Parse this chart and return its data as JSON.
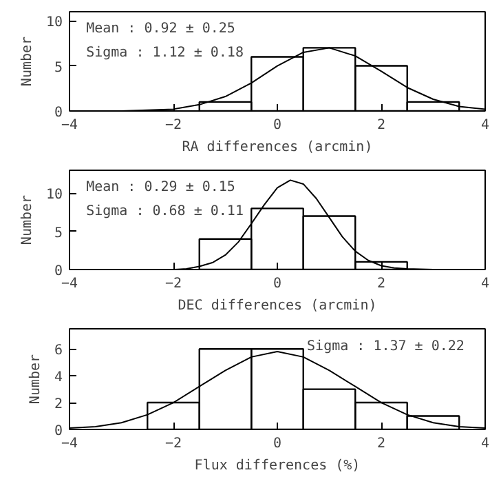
{
  "chart_data": [
    {
      "type": "histogram",
      "xlabel": "RA differences (arcmin)",
      "ylabel": "Number",
      "xlim": [
        -4,
        4
      ],
      "ylim": [
        0,
        11
      ],
      "xticks": [
        -4,
        -2,
        0,
        2,
        4
      ],
      "yticks": [
        0,
        5,
        10
      ],
      "grid": false,
      "annotations": [
        "Mean  :  0.92 ± 0.25",
        "Sigma :  1.12 ± 0.18"
      ],
      "series": [
        {
          "color": "#000000",
          "bins": [
            -1.5,
            -0.5,
            0.5,
            1.5,
            2.5,
            3.5
          ],
          "values": [
            1,
            6,
            7,
            5,
            1
          ]
        },
        {
          "type": "line",
          "color": "#000000",
          "x": [
            -4,
            -3.5,
            -3,
            -2.5,
            -2,
            -1.5,
            -1,
            -0.5,
            0,
            0.5,
            1,
            1.5,
            2,
            2.5,
            3,
            3.5,
            4
          ],
          "values": [
            0.0,
            0.0,
            0.0,
            0.1,
            0.2,
            0.7,
            1.6,
            3.1,
            5.0,
            6.5,
            7.0,
            6.1,
            4.4,
            2.6,
            1.3,
            0.5,
            0.2
          ]
        }
      ]
    },
    {
      "type": "histogram",
      "xlabel": "DEC differences (arcmin)",
      "ylabel": "Number",
      "xlim": [
        -4,
        4
      ],
      "ylim": [
        0,
        13
      ],
      "xticks": [
        -4,
        -2,
        0,
        2,
        4
      ],
      "yticks": [
        0,
        5,
        10
      ],
      "grid": false,
      "annotations": [
        "Mean  :  0.29 ± 0.15",
        "Sigma :  0.68 ± 0.11"
      ],
      "series": [
        {
          "color": "#000000",
          "bins": [
            -1.5,
            -0.5,
            0.5,
            1.5,
            2.5
          ],
          "values": [
            4,
            8,
            7,
            1
          ]
        },
        {
          "type": "line",
          "color": "#000000",
          "x": [
            -4,
            -3,
            -2,
            -1.75,
            -1.5,
            -1.25,
            -1,
            -0.75,
            -0.5,
            -0.25,
            0,
            0.25,
            0.5,
            0.75,
            1,
            1.25,
            1.5,
            1.75,
            2,
            2.25,
            2.5,
            3,
            4
          ],
          "values": [
            0.0,
            0.0,
            0.0,
            0.1,
            0.4,
            0.9,
            1.9,
            3.6,
            6.0,
            8.5,
            10.7,
            11.7,
            11.2,
            9.3,
            6.8,
            4.3,
            2.4,
            1.2,
            0.5,
            0.2,
            0.1,
            0.0,
            0.0
          ]
        }
      ]
    },
    {
      "type": "histogram",
      "xlabel": "Flux differences (%)",
      "ylabel": "Number",
      "xlim": [
        -4,
        4
      ],
      "ylim": [
        0,
        7.5
      ],
      "xticks": [
        -4,
        -2,
        0,
        2,
        4
      ],
      "yticks": [
        0,
        2,
        4,
        6
      ],
      "grid": false,
      "annotations": [
        "Sigma :  1.37 ± 0.22"
      ],
      "series": [
        {
          "color": "#000000",
          "bins": [
            -2.5,
            -1.5,
            -0.5,
            0.5,
            1.5,
            2.5,
            3.5
          ],
          "values": [
            2,
            6,
            6,
            3,
            2,
            1
          ]
        },
        {
          "type": "line",
          "color": "#000000",
          "x": [
            -4,
            -3.5,
            -3,
            -2.5,
            -2,
            -1.5,
            -1,
            -0.5,
            0,
            0.5,
            1,
            1.5,
            2,
            2.5,
            3,
            3.5,
            4
          ],
          "values": [
            0.1,
            0.2,
            0.5,
            1.1,
            2.0,
            3.2,
            4.4,
            5.4,
            5.8,
            5.4,
            4.4,
            3.2,
            2.0,
            1.1,
            0.5,
            0.2,
            0.1
          ]
        }
      ]
    }
  ]
}
